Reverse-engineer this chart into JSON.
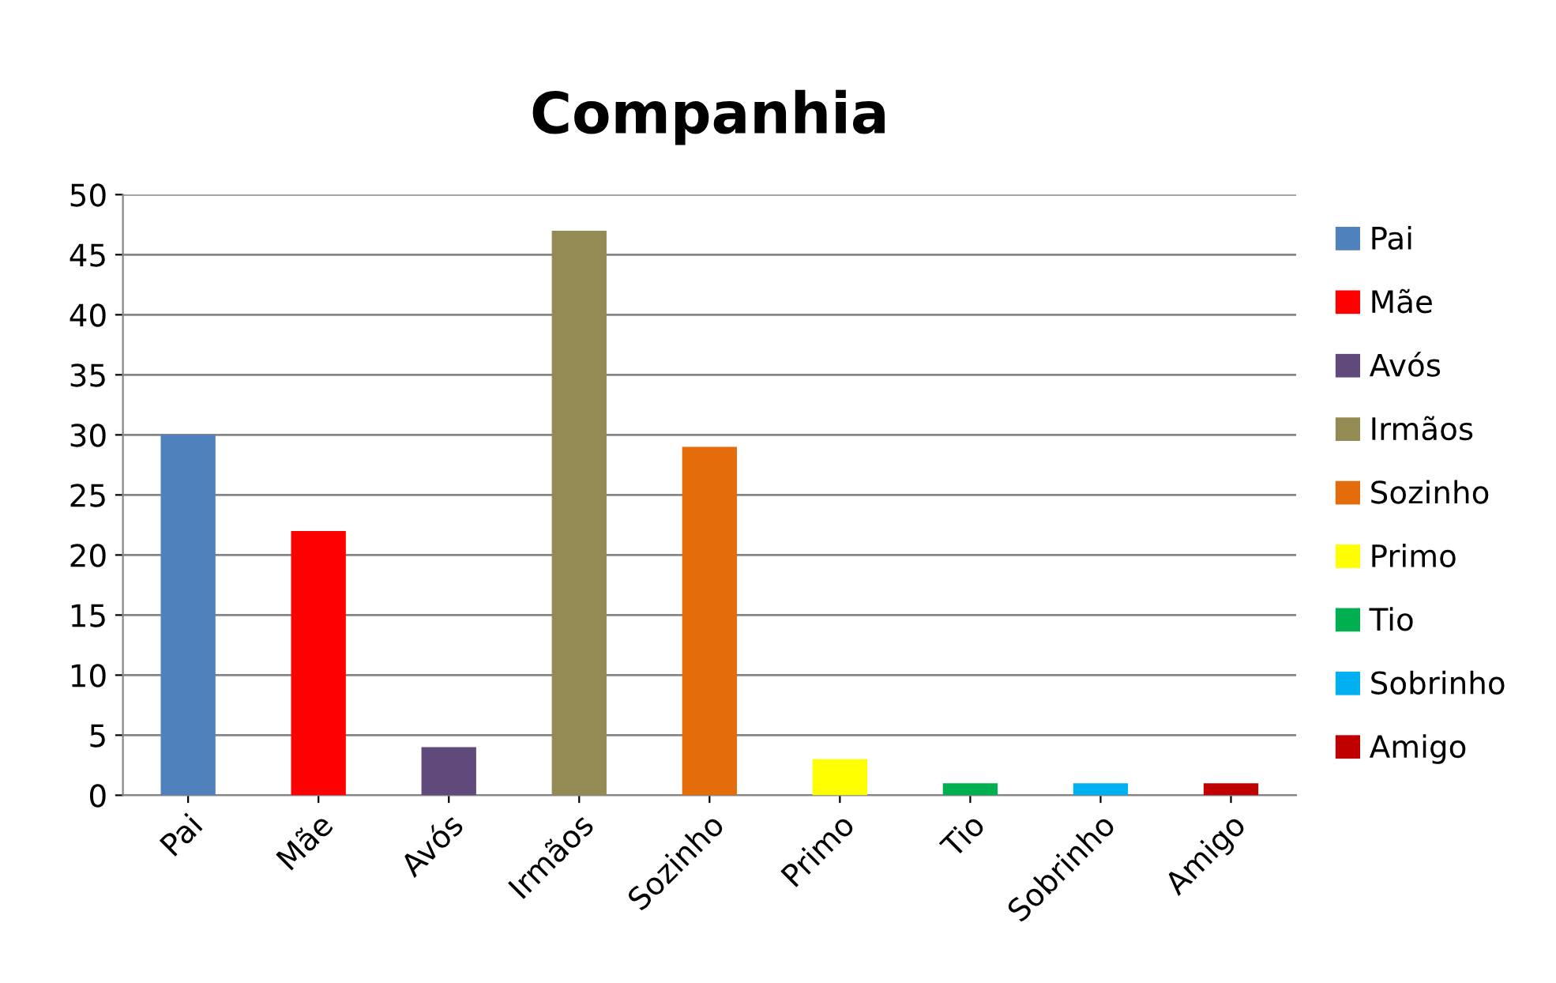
{
  "chart_data": {
    "type": "bar",
    "title": "Companhia",
    "categories": [
      "Pai",
      "Mãe",
      "Avós",
      "Irmãos",
      "Sozinho",
      "Primo",
      "Tio",
      "Sobrinho",
      "Amigo"
    ],
    "series": [
      {
        "name": "Pai",
        "color": "#4f81bd",
        "values": [
          30,
          null,
          null,
          null,
          null,
          null,
          null,
          null,
          null
        ]
      },
      {
        "name": "Mãe",
        "color": "#ff0000",
        "values": [
          null,
          22,
          null,
          null,
          null,
          null,
          null,
          null,
          null
        ]
      },
      {
        "name": "Avós",
        "color": "#604a7b",
        "values": [
          null,
          null,
          4,
          null,
          null,
          null,
          null,
          null,
          null
        ]
      },
      {
        "name": "Irmãos",
        "color": "#948a54",
        "values": [
          null,
          null,
          null,
          47,
          null,
          null,
          null,
          null,
          null
        ]
      },
      {
        "name": "Sozinho",
        "color": "#e46c0a",
        "values": [
          null,
          null,
          null,
          null,
          29,
          null,
          null,
          null,
          null
        ]
      },
      {
        "name": "Primo",
        "color": "#ffff00",
        "values": [
          null,
          null,
          null,
          null,
          null,
          3,
          null,
          null,
          null
        ]
      },
      {
        "name": "Tio",
        "color": "#00b050",
        "values": [
          null,
          null,
          null,
          null,
          null,
          null,
          1,
          null,
          null
        ]
      },
      {
        "name": "Sobrinho",
        "color": "#00b0f0",
        "values": [
          null,
          null,
          null,
          null,
          null,
          null,
          null,
          1,
          null
        ]
      },
      {
        "name": "Amigo",
        "color": "#c00000",
        "values": [
          null,
          null,
          null,
          null,
          null,
          null,
          null,
          null,
          1
        ]
      }
    ],
    "ylim": [
      0,
      50
    ],
    "yticks": [
      0,
      5,
      10,
      15,
      20,
      25,
      30,
      35,
      40,
      45,
      50
    ],
    "grid": "y",
    "legend": "right"
  }
}
